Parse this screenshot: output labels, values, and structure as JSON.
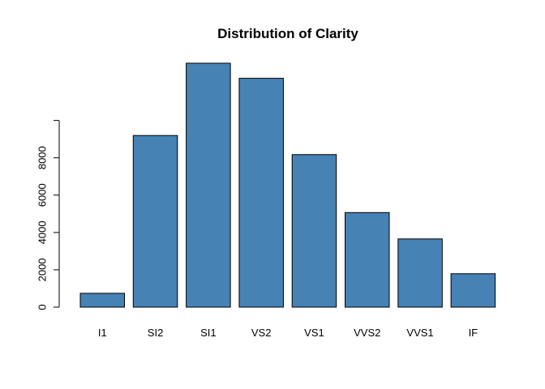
{
  "chart_data": {
    "type": "bar",
    "title": "Distribution of Clarity",
    "xlabel": "",
    "ylabel": "",
    "categories": [
      "I1",
      "SI2",
      "SI1",
      "VS2",
      "VS1",
      "VVS2",
      "VVS1",
      "IF"
    ],
    "values": [
      741,
      9194,
      13065,
      12258,
      8171,
      5066,
      3655,
      1790
    ],
    "ylim": [
      0,
      13065
    ],
    "yticks": [
      0,
      2000,
      4000,
      6000,
      8000,
      10000
    ],
    "ytick_labels": [
      "0",
      "2000",
      "4000",
      "6000",
      "8000",
      ""
    ],
    "bar_color": "#4682B4",
    "grid": false,
    "legend": "none"
  }
}
